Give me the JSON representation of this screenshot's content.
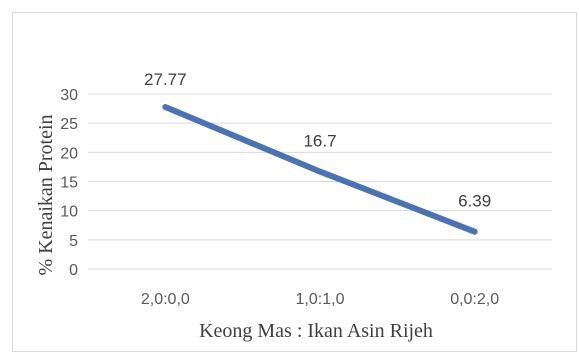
{
  "chart_data": {
    "type": "line",
    "categories": [
      "2,0:0,0",
      "1,0:1,0",
      "0,0:2,0"
    ],
    "series": [
      {
        "values": [
          27.77,
          16.7,
          6.39
        ],
        "data_labels": [
          "27.77",
          "16.7",
          "6.39"
        ]
      }
    ],
    "xlabel": "Keong Mas : Ikan Asin Rijeh",
    "ylabel": "% Kenaikan Protein",
    "ylim": [
      0,
      30
    ],
    "yticks": [
      "0",
      "5",
      "10",
      "15",
      "20",
      "25",
      "30"
    ],
    "grid": true,
    "legend": "none",
    "line_color": "#4a73b5",
    "grid_color": "#d9d9d9"
  }
}
